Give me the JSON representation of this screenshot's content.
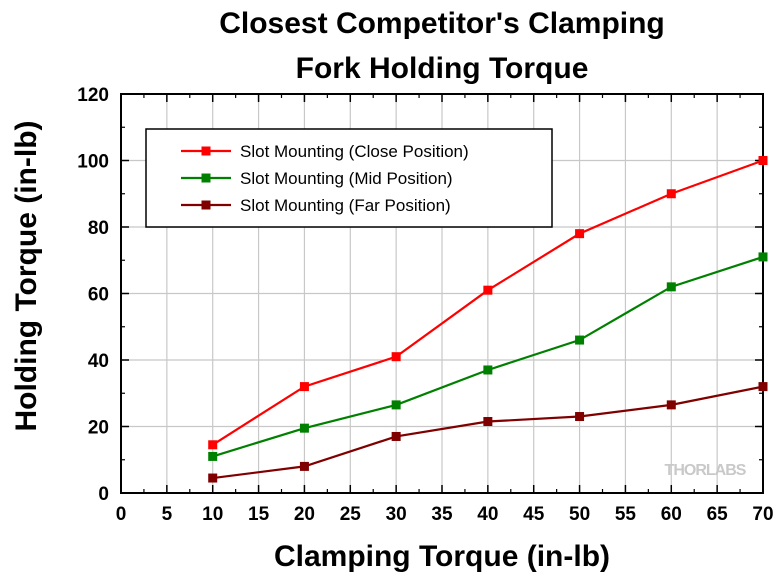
{
  "watermark": "THORLABS",
  "chart_data": {
    "type": "line",
    "title_lines": [
      "Closest Competitor's Clamping",
      "Fork Holding Torque"
    ],
    "xlabel": "Clamping Torque (in-lb)",
    "ylabel": "Holding Torque (in-lb)",
    "xlim": [
      0,
      70
    ],
    "ylim": [
      0,
      120
    ],
    "x_ticks": [
      0,
      5,
      10,
      15,
      20,
      25,
      30,
      35,
      40,
      45,
      50,
      55,
      60,
      65,
      70
    ],
    "y_ticks": [
      0,
      20,
      40,
      60,
      80,
      100,
      120
    ],
    "grid": true,
    "legend_position": "top-left",
    "x": [
      10,
      20,
      30,
      40,
      50,
      60,
      70
    ],
    "series": [
      {
        "name": "Slot Mounting (Close Position)",
        "color": "#ff0000",
        "marker": "square",
        "values": [
          14.5,
          32,
          41,
          61,
          78,
          90,
          100
        ]
      },
      {
        "name": "Slot Mounting (Mid Position)",
        "color": "#008000",
        "marker": "square",
        "values": [
          11,
          19.5,
          26.5,
          37,
          46,
          62,
          71
        ]
      },
      {
        "name": "Slot Mounting (Far Position)",
        "color": "#800000",
        "marker": "square",
        "values": [
          4.5,
          8,
          17,
          21.5,
          23,
          26.5,
          32
        ]
      }
    ]
  }
}
